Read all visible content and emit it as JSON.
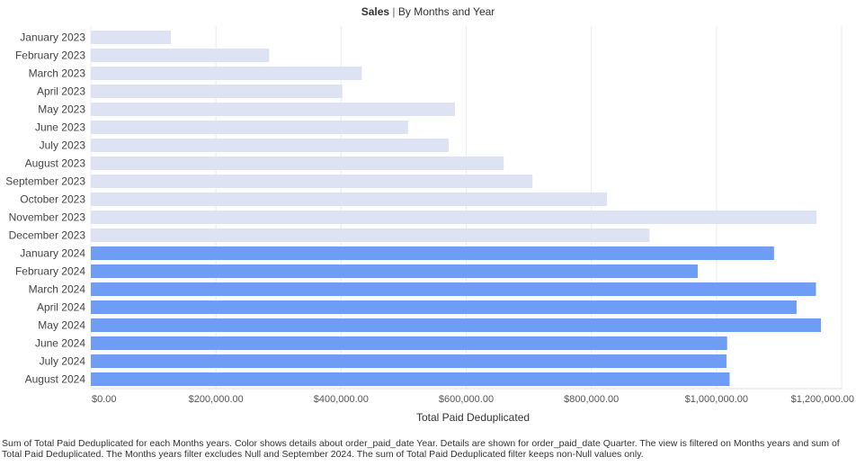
{
  "chart_data": {
    "type": "bar",
    "orientation": "horizontal",
    "title": "Sales",
    "subtitle": "By Months and Year",
    "title_separator": "|",
    "xlabel": "Total Paid Deduplicated",
    "xlim": [
      0,
      1200000
    ],
    "x_ticks": [
      "$0.00",
      "$200,000.00",
      "$400,000.00",
      "$600,000.00",
      "$800,000.00",
      "$1,000,000.00",
      "$1,200,000.00"
    ],
    "grid": true,
    "categories": [
      "January 2023",
      "February 2023",
      "March 2023",
      "April 2023",
      "May 2023",
      "June 2023",
      "July 2023",
      "August 2023",
      "September 2023",
      "October 2023",
      "November 2023",
      "December 2023",
      "January 2024",
      "February 2024",
      "March 2024",
      "April 2024",
      "May 2024",
      "June 2024",
      "July 2024",
      "August 2024"
    ],
    "values": [
      128000,
      285000,
      433000,
      402000,
      582000,
      507000,
      572000,
      660000,
      706000,
      825000,
      1160000,
      893000,
      1092000,
      970000,
      1159000,
      1128000,
      1167000,
      1017000,
      1016000,
      1021000
    ],
    "year": [
      "2023",
      "2023",
      "2023",
      "2023",
      "2023",
      "2023",
      "2023",
      "2023",
      "2023",
      "2023",
      "2023",
      "2023",
      "2024",
      "2024",
      "2024",
      "2024",
      "2024",
      "2024",
      "2024",
      "2024"
    ],
    "colors": {
      "2023": "#dde3f2",
      "2024": "#6e9df5"
    }
  },
  "caption": "Sum of Total Paid Deduplicated for each Months years.  Color shows details about order_paid_date Year.  Details are shown for order_paid_date Quarter. The view is filtered on Months years and sum of Total Paid Deduplicated. The Months years filter excludes Null and September 2024. The sum of Total Paid Deduplicated filter keeps non-Null values only."
}
